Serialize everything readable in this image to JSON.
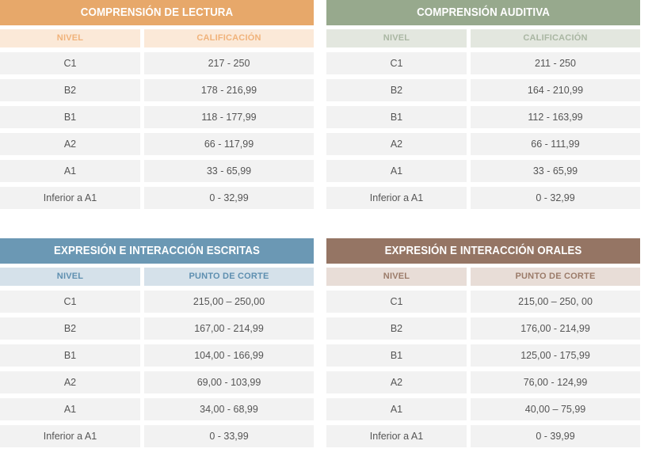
{
  "tables": [
    {
      "title": "COMPRENSIÓN DE LECTURA",
      "col_level": "NIVEL",
      "col_score": "CALIFICACIÓN",
      "rows": [
        {
          "level": "C1",
          "score": "217 - 250"
        },
        {
          "level": "B2",
          "score": "178 - 216,99"
        },
        {
          "level": "B1",
          "score": "118 - 177,99"
        },
        {
          "level": "A2",
          "score": "66 - 117,99"
        },
        {
          "level": "A1",
          "score": "33 - 65,99"
        },
        {
          "level": "Inferior a A1",
          "score": "0 - 32,99"
        }
      ]
    },
    {
      "title": "COMPRENSIÓN AUDITIVA",
      "col_level": "NIVEL",
      "col_score": "CALIFICACIÓN",
      "rows": [
        {
          "level": "C1",
          "score": "211 - 250"
        },
        {
          "level": "B2",
          "score": "164 - 210,99"
        },
        {
          "level": "B1",
          "score": "112 - 163,99"
        },
        {
          "level": "A2",
          "score": "66 - 111,99"
        },
        {
          "level": "A1",
          "score": "33 - 65,99"
        },
        {
          "level": "Inferior a A1",
          "score": "0 - 32,99"
        }
      ]
    },
    {
      "title": "EXPRESIÓN E INTERACCIÓN ESCRITAS",
      "col_level": "NIVEL",
      "col_score": "PUNTO DE CORTE",
      "rows": [
        {
          "level": "C1",
          "score": "215,00 – 250,00"
        },
        {
          "level": "B2",
          "score": "167,00 - 214,99"
        },
        {
          "level": "B1",
          "score": "104,00 - 166,99"
        },
        {
          "level": "A2",
          "score": "69,00 - 103,99"
        },
        {
          "level": "A1",
          "score": "34,00 - 68,99"
        },
        {
          "level": "Inferior a A1",
          "score": "0 - 33,99"
        }
      ]
    },
    {
      "title": "EXPRESIÓN E INTERACCIÓN ORALES",
      "col_level": "NIVEL",
      "col_score": "PUNTO DE CORTE",
      "rows": [
        {
          "level": "C1",
          "score": "215,00 – 250, 00"
        },
        {
          "level": "B2",
          "score": "176,00 - 214,99"
        },
        {
          "level": "B1",
          "score": "125,00 - 175,99"
        },
        {
          "level": "A2",
          "score": "76,00 - 124,99"
        },
        {
          "level": "A1",
          "score": "40,00 – 75,99"
        },
        {
          "level": "Inferior a A1",
          "score": "0 - 39,99"
        }
      ]
    }
  ]
}
